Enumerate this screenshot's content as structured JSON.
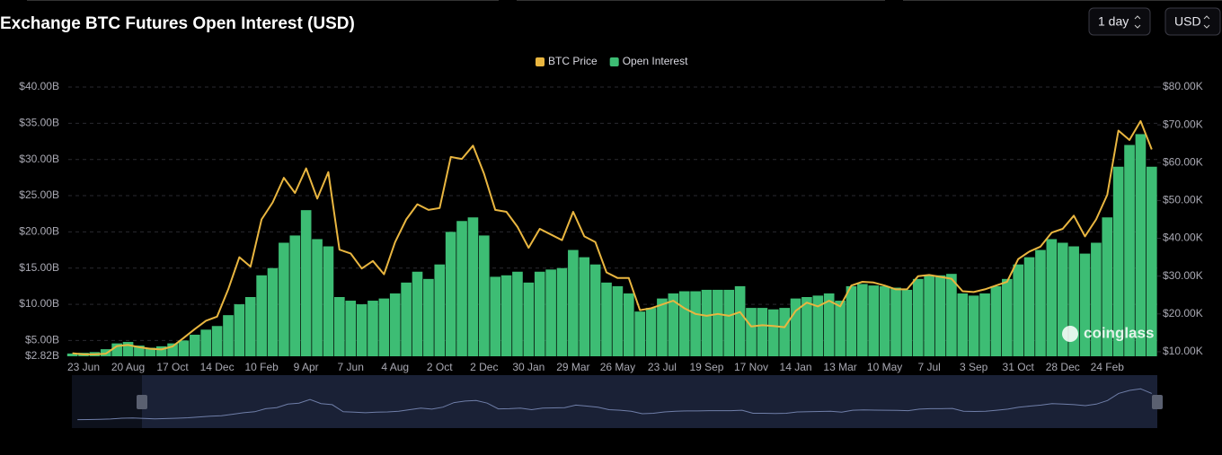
{
  "chart_data": {
    "type": "bar-line",
    "title": "Exchange BTC Futures Open Interest (USD)",
    "controls": [
      "1 day",
      "USD"
    ],
    "watermark": "coinglass",
    "categories": [
      null,
      "23 Jun",
      null,
      null,
      null,
      "20 Aug",
      null,
      null,
      null,
      "17 Oct",
      null,
      null,
      null,
      "14 Dec",
      null,
      null,
      null,
      "10 Feb",
      null,
      null,
      null,
      "9 Apr",
      null,
      null,
      null,
      "7 Jun",
      null,
      null,
      null,
      "4 Aug",
      null,
      null,
      null,
      "2 Oct",
      null,
      null,
      null,
      "2 Dec",
      null,
      null,
      null,
      "30 Jan",
      null,
      null,
      null,
      "29 Mar",
      null,
      null,
      null,
      "26 May",
      null,
      null,
      null,
      "23 Jul",
      null,
      null,
      null,
      "19 Sep",
      null,
      null,
      null,
      "17 Nov",
      null,
      null,
      null,
      "14 Jan",
      null,
      null,
      null,
      "13 Mar",
      null,
      null,
      null,
      "10 May",
      null,
      null,
      null,
      "7 Jul",
      null,
      null,
      null,
      "3 Sep",
      null,
      null,
      null,
      "31 Oct",
      null,
      null,
      null,
      "28 Dec",
      null,
      null,
      null,
      "24 Feb",
      null,
      null,
      null,
      null
    ],
    "series": [
      {
        "name": "BTC Price",
        "color": "#e9b640",
        "axis": "y2",
        "kind": "line",
        "values": [
          9600,
          9300,
          9300,
          9500,
          11500,
          11800,
          11200,
          10800,
          10600,
          11400,
          13700,
          16000,
          18200,
          19300,
          26500,
          35000,
          32500,
          45000,
          49500,
          56000,
          52000,
          58500,
          50500,
          57500,
          37000,
          36000,
          32000,
          34000,
          30500,
          39000,
          45000,
          49000,
          47500,
          48000,
          61500,
          61000,
          64500,
          57000,
          47500,
          47000,
          43000,
          37500,
          42500,
          41000,
          39500,
          47000,
          40500,
          39000,
          31000,
          29500,
          29500,
          21000,
          21500,
          22500,
          23500,
          21500,
          20000,
          19500,
          20000,
          19500,
          20500,
          16700,
          17000,
          16800,
          16500,
          20800,
          23000,
          22000,
          23500,
          22000,
          27500,
          28500,
          28300,
          27500,
          26500,
          26500,
          30000,
          30300,
          29800,
          29300,
          26000,
          25800,
          26500,
          27500,
          28500,
          34500,
          36500,
          37800,
          41500,
          42500,
          46000,
          40500,
          45000,
          51500,
          68500,
          66000,
          71000,
          63500
        ]
      },
      {
        "name": "Open Interest",
        "color": "#3dbd74",
        "axis": "y",
        "kind": "bar",
        "values": [
          3.2,
          3.3,
          3.4,
          3.8,
          4.6,
          4.8,
          4.3,
          4.0,
          4.2,
          4.6,
          5.0,
          5.8,
          6.5,
          7.0,
          8.5,
          10.0,
          11.0,
          14.0,
          15.0,
          18.5,
          19.5,
          23.0,
          19.0,
          18.0,
          11.0,
          10.5,
          10.0,
          10.5,
          10.8,
          11.5,
          13.0,
          14.5,
          13.5,
          15.5,
          20.0,
          21.5,
          22.0,
          19.5,
          13.8,
          14.0,
          14.5,
          13.0,
          14.5,
          14.8,
          15.0,
          17.5,
          16.5,
          15.5,
          13.0,
          12.5,
          11.5,
          9.0,
          9.5,
          10.8,
          11.5,
          11.8,
          11.8,
          12.0,
          12.0,
          12.0,
          12.5,
          9.5,
          9.5,
          9.3,
          9.5,
          10.8,
          11.0,
          11.2,
          11.5,
          10.5,
          12.5,
          12.8,
          12.6,
          12.5,
          12.3,
          12.0,
          13.5,
          14.0,
          14.0,
          14.2,
          11.5,
          11.2,
          11.5,
          12.5,
          13.5,
          15.5,
          16.5,
          17.5,
          19.0,
          18.5,
          18.0,
          17.0,
          18.5,
          22.0,
          29.0,
          32.0,
          33.5,
          29.0
        ]
      }
    ],
    "ylim": [
      2.82,
      40
    ],
    "yticks": [
      {
        "value": 2.82,
        "label": "$2.82B"
      },
      {
        "value": 5,
        "label": "$5.00B"
      },
      {
        "value": 10,
        "label": "$10.00B"
      },
      {
        "value": 15,
        "label": "$15.00B"
      },
      {
        "value": 20,
        "label": "$20.00B"
      },
      {
        "value": 25,
        "label": "$25.00B"
      },
      {
        "value": 30,
        "label": "$30.00B"
      },
      {
        "value": 35,
        "label": "$35.00B"
      },
      {
        "value": 40,
        "label": "$40.00B"
      }
    ],
    "y2lim": [
      8800,
      80000
    ],
    "y2ticks": [
      {
        "value": 10000,
        "label": "$10.00K"
      },
      {
        "value": 20000,
        "label": "$20.00K"
      },
      {
        "value": 30000,
        "label": "$30.00K"
      },
      {
        "value": 40000,
        "label": "$40.00K"
      },
      {
        "value": 50000,
        "label": "$50.00K"
      },
      {
        "value": 60000,
        "label": "$60.00K"
      },
      {
        "value": 70000,
        "label": "$70.00K"
      },
      {
        "value": 80000,
        "label": "$80.00K"
      }
    ],
    "grid": true,
    "legend": "top"
  }
}
